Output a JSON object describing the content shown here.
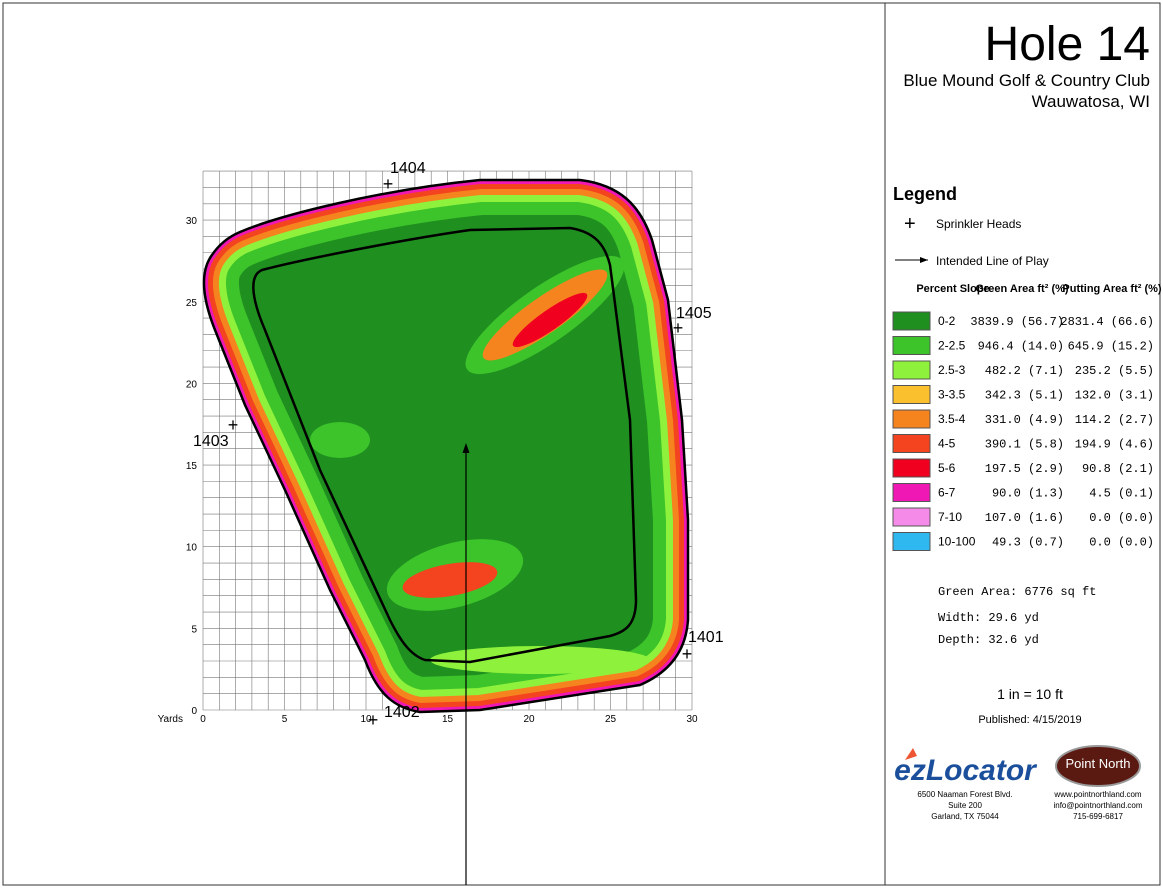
{
  "header": {
    "title": "Hole 14",
    "club": "Blue Mound Golf & Country Club",
    "location": "Wauwatosa, WI"
  },
  "map": {
    "axis_label": "Yards",
    "xticks": [
      0,
      5,
      10,
      15,
      20,
      25,
      30
    ],
    "yticks": [
      0,
      5,
      10,
      15,
      20,
      25,
      30
    ],
    "sprinklers": [
      "1401",
      "1402",
      "1403",
      "1404",
      "1405"
    ]
  },
  "legend": {
    "title": "Legend",
    "sprinkler_label": "Sprinkler Heads",
    "line_label": "Intended Line of Play",
    "columns": [
      "Percent Slope",
      "Green Area ft² (%)",
      "Putting Area ft² (%)"
    ],
    "rows": [
      {
        "slope": "0-2",
        "green": "3839.9 (56.7)",
        "putting": "2831.4 (66.6)",
        "color": "#1f8f1f"
      },
      {
        "slope": "2-2.5",
        "green": "946.4 (14.0)",
        "putting": "645.9 (15.2)",
        "color": "#3cc42a"
      },
      {
        "slope": "2.5-3",
        "green": "482.2 (7.1)",
        "putting": "235.2 (5.5)",
        "color": "#8ef23c"
      },
      {
        "slope": "3-3.5",
        "green": "342.3 (5.1)",
        "putting": "132.0 (3.1)",
        "color": "#fbc02d"
      },
      {
        "slope": "3.5-4",
        "green": "331.0 (4.9)",
        "putting": "114.2 (2.7)",
        "color": "#f5841f"
      },
      {
        "slope": "4-5",
        "green": "390.1 (5.8)",
        "putting": "194.9 (4.6)",
        "color": "#f4431f"
      },
      {
        "slope": "5-6",
        "green": "197.5 (2.9)",
        "putting": "90.8 (2.1)",
        "color": "#f0001e"
      },
      {
        "slope": "6-7",
        "green": "90.0 (1.3)",
        "putting": "4.5 (0.1)",
        "color": "#f018b4"
      },
      {
        "slope": "7-10",
        "green": "107.0 (1.6)",
        "putting": "0.0 (0.0)",
        "color": "#f58ae8"
      },
      {
        "slope": "10-100",
        "green": "49.3 (0.7)",
        "putting": "0.0 (0.0)",
        "color": "#2fb7ef"
      }
    ]
  },
  "stats": [
    "Green Area: 6776 sq ft",
    "Width: 29.6 yd",
    "Depth: 32.6 yd"
  ],
  "scale": "1 in = 10 ft",
  "published": "Published: 4/15/2019",
  "footer": {
    "ez_logo": "ezLocator",
    "ez_address": [
      "6500 Naaman Forest Blvd.",
      "Suite 200",
      "Garland, TX  75044"
    ],
    "pn_logo": "Point North",
    "pn_contact": [
      "www.pointnorthland.com",
      "info@pointnorthland.com",
      "715-699-6817"
    ]
  }
}
